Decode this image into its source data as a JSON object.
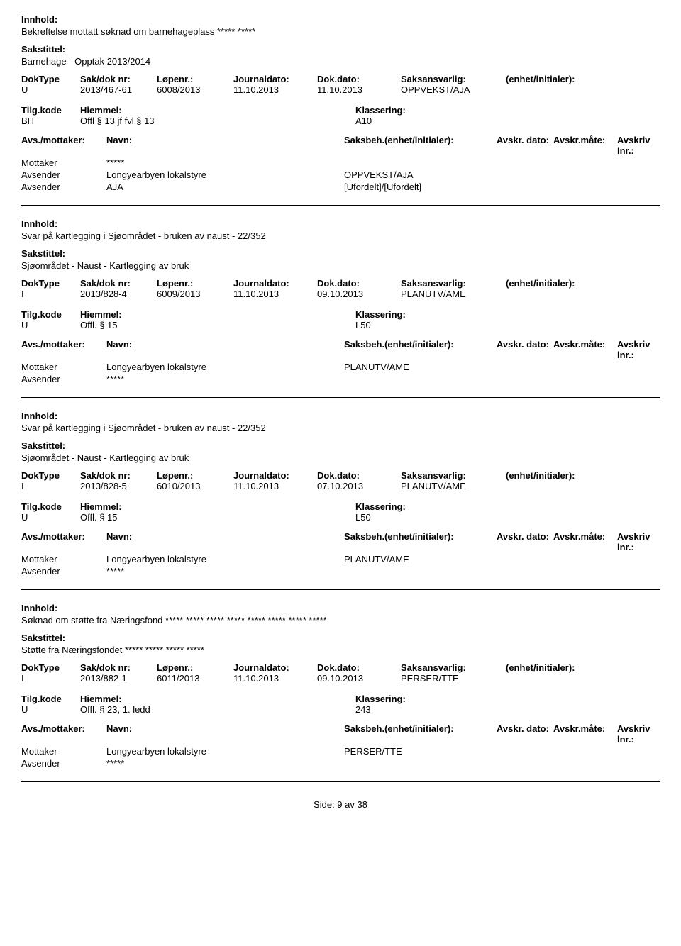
{
  "labels": {
    "innhold": "Innhold:",
    "sakstittel": "Sakstittel:",
    "doktype": "DokType",
    "sakdoknr": "Sak/dok nr:",
    "lopenr": "Løpenr.:",
    "journaldato": "Journaldato:",
    "dokdato": "Dok.dato:",
    "saksansvarlig": "Saksansvarlig:",
    "enhet": "(enhet/initialer):",
    "tilgkode": "Tilg.kode",
    "hjemmel": "Hiemmel:",
    "klassering": "Klassering:",
    "avsmottaker": "Avs./mottaker:",
    "navn": "Navn:",
    "saksbeh": "Saksbeh.",
    "saksbeh_enhet": "(enhet/initialer):",
    "avskrdato": "Avskr. dato:",
    "avskrmate": "Avskr.måte:",
    "avskrivlnr": "Avskriv lnr.:",
    "mottaker": "Mottaker",
    "avsender": "Avsender"
  },
  "records": [
    {
      "innhold": "Bekreftelse mottatt søknad om barnehageplass ***** *****",
      "sakstittel": "Barnehage - Opptak 2013/2014",
      "doktype": "U",
      "sakdoknr": "2013/467-61",
      "lopenr": "6008/2013",
      "journaldato": "11.10.2013",
      "dokdato": "11.10.2013",
      "saksansvarlig": "OPPVEKST/AJA",
      "tilgkode": "BH",
      "hjemmel": "Offl § 13 jf fvl § 13",
      "klassering": "A10",
      "parties": [
        {
          "role": "Mottaker",
          "name": "*****",
          "beh": ""
        },
        {
          "role": "Avsender",
          "name": "Longyearbyen lokalstyre",
          "beh": "OPPVEKST/AJA"
        },
        {
          "role": "Avsender",
          "name": "AJA",
          "beh": "[Ufordelt]/[Ufordelt]"
        }
      ]
    },
    {
      "innhold": "Svar på kartlegging i Sjøområdet - bruken av naust - 22/352",
      "sakstittel": "Sjøområdet - Naust - Kartlegging av bruk",
      "doktype": "I",
      "sakdoknr": "2013/828-4",
      "lopenr": "6009/2013",
      "journaldato": "11.10.2013",
      "dokdato": "09.10.2013",
      "saksansvarlig": "PLANUTV/AME",
      "tilgkode": "U",
      "hjemmel": "Offl. § 15",
      "klassering": "L50",
      "parties": [
        {
          "role": "Mottaker",
          "name": "Longyearbyen lokalstyre",
          "beh": "PLANUTV/AME"
        },
        {
          "role": "Avsender",
          "name": "*****",
          "beh": ""
        }
      ]
    },
    {
      "innhold": "Svar på kartlegging i Sjøområdet - bruken av naust - 22/352",
      "sakstittel": "Sjøområdet - Naust - Kartlegging av bruk",
      "doktype": "I",
      "sakdoknr": "2013/828-5",
      "lopenr": "6010/2013",
      "journaldato": "11.10.2013",
      "dokdato": "07.10.2013",
      "saksansvarlig": "PLANUTV/AME",
      "tilgkode": "U",
      "hjemmel": "Offl. § 15",
      "klassering": "L50",
      "parties": [
        {
          "role": "Mottaker",
          "name": "Longyearbyen lokalstyre",
          "beh": "PLANUTV/AME"
        },
        {
          "role": "Avsender",
          "name": "*****",
          "beh": ""
        }
      ]
    },
    {
      "innhold": "Søknad om støtte fra Næringsfond ***** ***** ***** ***** ***** ***** ***** *****",
      "sakstittel": "Støtte fra Næringsfondet ***** ***** ***** *****",
      "doktype": "I",
      "sakdoknr": "2013/882-1",
      "lopenr": "6011/2013",
      "journaldato": "11.10.2013",
      "dokdato": "09.10.2013",
      "saksansvarlig": "PERSER/TTE",
      "tilgkode": "U",
      "hjemmel": "Offl. § 23, 1. ledd",
      "klassering": "243",
      "parties": [
        {
          "role": "Mottaker",
          "name": "Longyearbyen lokalstyre",
          "beh": "PERSER/TTE"
        },
        {
          "role": "Avsender",
          "name": "*****",
          "beh": ""
        }
      ]
    }
  ],
  "footer": "Side: 9 av 38"
}
